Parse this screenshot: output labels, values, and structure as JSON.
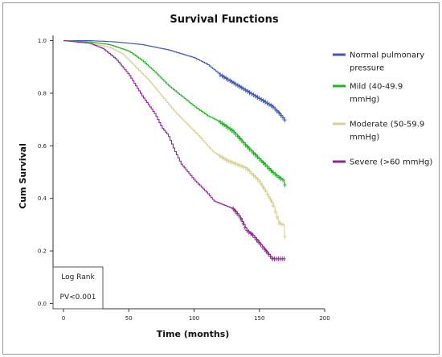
{
  "chart_data": {
    "type": "line",
    "subtype": "kaplan-meier step curves with censoring marks",
    "title": "Survival Functions",
    "xlabel": "Time (months)",
    "ylabel": "Cum Survival",
    "xlim": [
      -8,
      200
    ],
    "ylim": [
      -0.02,
      1.02
    ],
    "xticks": [
      0,
      50,
      100,
      150,
      200
    ],
    "xtick_labels": [
      "0",
      "50",
      "100",
      "150",
      "200"
    ],
    "yticks": [
      0.0,
      0.2,
      0.4,
      0.6,
      0.8,
      1.0
    ],
    "ytick_labels": [
      "0.0",
      "0.2",
      "0.4",
      "0.6",
      "0.8",
      "1.0"
    ],
    "grid": false,
    "legend_position": "right",
    "series": [
      {
        "name": "Normal pulmonary pressure",
        "color": "#3b59b5",
        "x": [
          0,
          20,
          40,
          60,
          80,
          100,
          110,
          120,
          130,
          140,
          150,
          160,
          165,
          170
        ],
        "y": [
          1.0,
          1.0,
          0.995,
          0.985,
          0.965,
          0.935,
          0.91,
          0.87,
          0.84,
          0.81,
          0.78,
          0.75,
          0.725,
          0.695
        ],
        "censor_from_x": 120,
        "censor_to_x": 170
      },
      {
        "name": "Mild (40-49.9 mmHg)",
        "color": "#1cb523",
        "x": [
          0,
          20,
          35,
          50,
          60,
          70,
          80,
          90,
          100,
          110,
          120,
          130,
          140,
          150,
          160,
          165,
          168,
          170
        ],
        "y": [
          1.0,
          0.995,
          0.985,
          0.96,
          0.925,
          0.88,
          0.83,
          0.79,
          0.75,
          0.715,
          0.69,
          0.655,
          0.6,
          0.55,
          0.5,
          0.48,
          0.47,
          0.445
        ],
        "censor_from_x": 120,
        "censor_to_x": 170
      },
      {
        "name": "Moderate (50-59.9 mmHg)",
        "color": "#d8d091",
        "x": [
          0,
          20,
          35,
          45,
          55,
          65,
          75,
          85,
          95,
          105,
          110,
          115,
          120,
          125,
          130,
          140,
          150,
          155,
          160,
          165,
          168,
          170
        ],
        "y": [
          1.0,
          0.99,
          0.975,
          0.95,
          0.9,
          0.85,
          0.79,
          0.73,
          0.68,
          0.63,
          0.6,
          0.575,
          0.56,
          0.545,
          0.535,
          0.515,
          0.465,
          0.425,
          0.38,
          0.305,
          0.3,
          0.24
        ],
        "censor_from_x": 120,
        "censor_to_x": 170
      },
      {
        "name": "Severe (>60 mmHg)",
        "color": "#8d2594",
        "x": [
          0,
          20,
          30,
          40,
          50,
          60,
          70,
          75,
          80,
          85,
          90,
          95,
          100,
          110,
          115,
          120,
          130,
          135,
          140,
          145,
          150,
          155,
          160,
          170
        ],
        "y": [
          1.0,
          0.99,
          0.97,
          0.93,
          0.87,
          0.79,
          0.72,
          0.67,
          0.64,
          0.58,
          0.53,
          0.5,
          0.47,
          0.42,
          0.39,
          0.38,
          0.36,
          0.33,
          0.28,
          0.26,
          0.23,
          0.2,
          0.17,
          0.17
        ],
        "censor_from_x": 130,
        "censor_to_x": 170
      }
    ],
    "annotation": {
      "title": "Log Rank",
      "text": "PV<0.001"
    }
  }
}
